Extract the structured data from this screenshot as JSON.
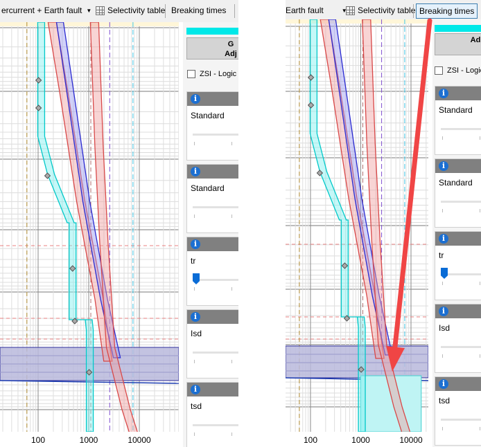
{
  "toolbar": {
    "left": {
      "combo_text": "ercurrent + Earth fault",
      "selectivity": "Selectivity table",
      "breaking": "Breaking times"
    },
    "right": {
      "combo_text": "Earth fault",
      "selectivity": "Selectivity table",
      "breaking": "Breaking times"
    }
  },
  "axis": {
    "x_ticks": [
      "100",
      "1000",
      "10000"
    ]
  },
  "side_panel": {
    "left": {
      "button_text": [
        "G",
        "Adj"
      ],
      "zsi_label": "ZSI - Logic s"
    },
    "right": {
      "button_text": [
        "",
        "Ad"
      ],
      "zsi_label": "ZSI - Logic"
    },
    "boxes": [
      {
        "label": "Standard",
        "slider": "inactive"
      },
      {
        "label": "Standard",
        "slider": "inactive"
      },
      {
        "label": "tr",
        "slider": "active"
      },
      {
        "label": "Isd",
        "slider": "inactive"
      },
      {
        "label": "tsd",
        "slider": "inactive"
      }
    ]
  },
  "colors": {
    "cyan": "#00e8e8",
    "red_curve": "#d84848",
    "blue_curve": "#2a2ad0",
    "selectivity_band": "#b8b8dc",
    "annotation_arrow": "#f04545",
    "info_icon": "#1c6fd1"
  }
}
